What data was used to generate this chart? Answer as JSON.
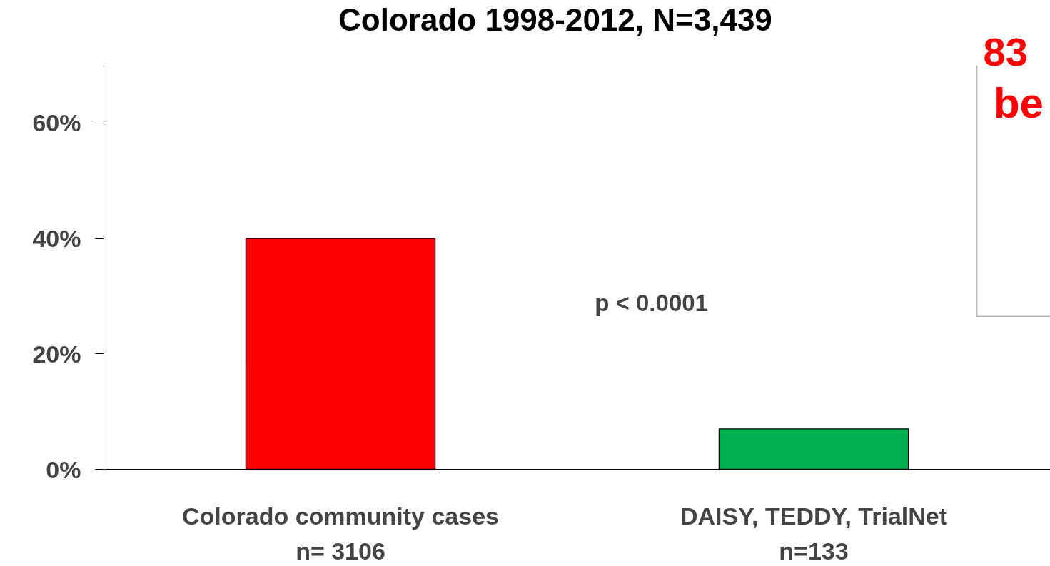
{
  "chart_data": {
    "type": "bar",
    "title": "Colorado 1998-2012,      N=3,439",
    "categories": [
      "Colorado community cases\nn= 3106",
      "DAISY, TEDDY, TrialNet\nn=133"
    ],
    "values": [
      40,
      7
    ],
    "colors": [
      "#ff0000",
      "#00b050"
    ],
    "ylim": [
      0,
      70
    ],
    "yticks": [
      {
        "value": 0,
        "label": "0%"
      },
      {
        "value": 20,
        "label": "20%"
      },
      {
        "value": 40,
        "label": "40%"
      },
      {
        "value": 60,
        "label": "60%"
      }
    ],
    "grid": false,
    "annotations": [
      "p < 0.0001",
      "83",
      "be"
    ]
  }
}
